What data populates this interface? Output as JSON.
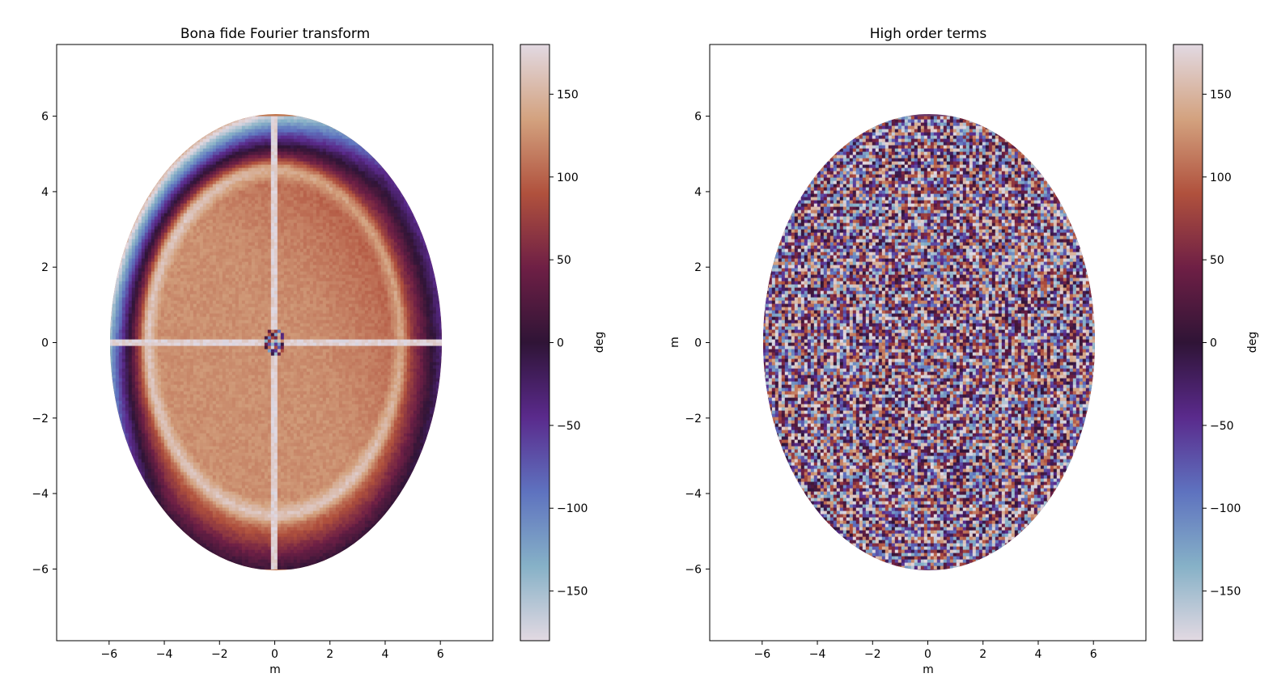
{
  "chart_data": [
    {
      "type": "heatmap",
      "title": "Bona fide Fourier transform",
      "xlabel": "m",
      "ylabel": "",
      "xlim": [
        -7.9,
        7.9
      ],
      "ylim": [
        -7.9,
        7.9
      ],
      "xticks": [
        -6,
        -4,
        -2,
        0,
        2,
        4,
        6
      ],
      "yticks": [
        -6,
        -4,
        -2,
        0,
        2,
        4,
        6
      ],
      "xtick_labels": [
        "−6",
        "−4",
        "−2",
        "0",
        "2",
        "4",
        "6"
      ],
      "ytick_labels": [
        "−6",
        "−4",
        "−2",
        "0",
        "2",
        "4",
        "6"
      ],
      "data_extent": {
        "x": [
          -6,
          6
        ],
        "y": [
          -6,
          6
        ]
      },
      "pattern": "smooth phase: mostly orange-brown interior, darker toward lower-right, blue/purple rim on upper-left edge, bright cross artifact at x=0 and y=0, ringing at origin",
      "colorbar": {
        "label": "deg",
        "range": [
          -180,
          180
        ],
        "ticks": [
          -150,
          -100,
          -50,
          0,
          50,
          100,
          150
        ],
        "tick_labels": [
          "−150",
          "−100",
          "−50",
          "0",
          "50",
          "100",
          "150"
        ],
        "colormap": "twilight_shifted"
      }
    },
    {
      "type": "heatmap",
      "title": "High order terms",
      "xlabel": "m",
      "ylabel": "m",
      "xlim": [
        -7.9,
        7.9
      ],
      "ylim": [
        -7.9,
        7.9
      ],
      "xticks": [
        -6,
        -4,
        -2,
        0,
        2,
        4,
        6
      ],
      "yticks": [
        -6,
        -4,
        -2,
        0,
        2,
        4,
        6
      ],
      "xtick_labels": [
        "−6",
        "−4",
        "−2",
        "0",
        "2",
        "4",
        "6"
      ],
      "ytick_labels": [
        "−6",
        "−4",
        "−2",
        "0",
        "2",
        "4",
        "6"
      ],
      "data_extent": {
        "x": [
          -6,
          6
        ],
        "y": [
          -6,
          6
        ]
      },
      "pattern": "concentric noisy rings filling the circular aperture",
      "colorbar": {
        "label": "deg",
        "range": [
          -180,
          180
        ],
        "ticks": [
          -150,
          -100,
          -50,
          0,
          50,
          100,
          150
        ],
        "tick_labels": [
          "−150",
          "−100",
          "−50",
          "0",
          "50",
          "100",
          "150"
        ],
        "colormap": "twilight_shifted"
      }
    }
  ],
  "colormap_stops": [
    {
      "v": -180,
      "c": "#e2d9e2"
    },
    {
      "v": -135,
      "c": "#86b1c7"
    },
    {
      "v": -90,
      "c": "#5e72bf"
    },
    {
      "v": -45,
      "c": "#5a2a8c"
    },
    {
      "v": 0,
      "c": "#2f1436"
    },
    {
      "v": 45,
      "c": "#6e1f45"
    },
    {
      "v": 90,
      "c": "#b0513d"
    },
    {
      "v": 135,
      "c": "#d3a27f"
    },
    {
      "v": 180,
      "c": "#e2d9e2"
    }
  ]
}
